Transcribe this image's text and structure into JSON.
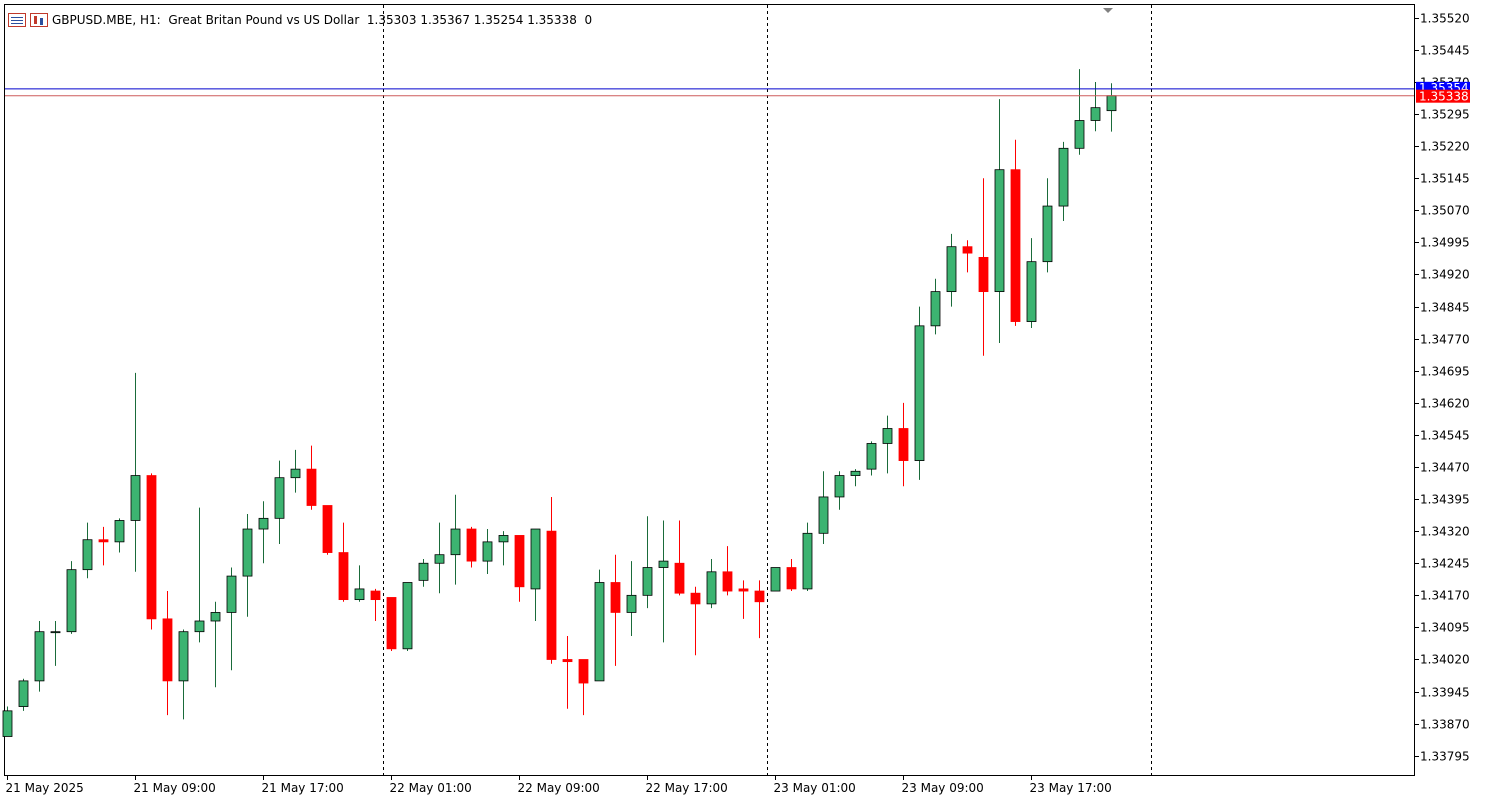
{
  "header": {
    "symbol_text": "GBPUSD.MBE, H1:  Great Britan Pound vs US Dollar  1.35303 1.35367 1.35254 1.35338  0",
    "icons": [
      "list-icon",
      "bar-chart-icon"
    ]
  },
  "colors": {
    "bull": "#3cb371",
    "bear": "#ff0000",
    "bid_line": "#0000cd",
    "ask_line": "#cd5c5c",
    "bid_label_bg": "#0000ff",
    "ask_label_bg": "#ff0000"
  },
  "chart_data": {
    "type": "candlestick",
    "ylim": [
      1.3375,
      1.3555
    ],
    "y_ticks": [
      "1.35520",
      "1.35445",
      "1.35370",
      "1.35295",
      "1.35220",
      "1.35145",
      "1.35070",
      "1.34995",
      "1.34920",
      "1.34845",
      "1.34770",
      "1.34695",
      "1.34620",
      "1.34545",
      "1.34470",
      "1.34395",
      "1.34320",
      "1.34245",
      "1.34170",
      "1.34095",
      "1.34020",
      "1.33945",
      "1.33870",
      "1.33795"
    ],
    "x_labels": [
      {
        "index": 0,
        "text": "21 May 2025"
      },
      {
        "index": 8,
        "text": "21 May 09:00"
      },
      {
        "index": 16,
        "text": "21 May 17:00"
      },
      {
        "index": 24,
        "text": "22 May 01:00"
      },
      {
        "index": 32,
        "text": "22 May 09:00"
      },
      {
        "index": 40,
        "text": "22 May 17:00"
      },
      {
        "index": 48,
        "text": "23 May 01:00"
      },
      {
        "index": 56,
        "text": "23 May 09:00"
      },
      {
        "index": 64,
        "text": "23 May 17:00"
      }
    ],
    "day_separators": [
      23,
      47,
      71
    ],
    "current_price": {
      "bid": "1.35338",
      "ask": "1.35354"
    },
    "candles": [
      {
        "o": 1.3384,
        "h": 1.3391,
        "l": 1.3384,
        "c": 1.339
      },
      {
        "o": 1.3391,
        "h": 1.33975,
        "l": 1.339,
        "c": 1.3397
      },
      {
        "o": 1.3397,
        "h": 1.3411,
        "l": 1.33945,
        "c": 1.34085
      },
      {
        "o": 1.34085,
        "h": 1.3411,
        "l": 1.34005,
        "c": 1.34085
      },
      {
        "o": 1.34085,
        "h": 1.3425,
        "l": 1.3408,
        "c": 1.3423
      },
      {
        "o": 1.3423,
        "h": 1.3434,
        "l": 1.3421,
        "c": 1.343
      },
      {
        "o": 1.343,
        "h": 1.3433,
        "l": 1.3424,
        "c": 1.34295
      },
      {
        "o": 1.34295,
        "h": 1.3435,
        "l": 1.3427,
        "c": 1.34345
      },
      {
        "o": 1.34345,
        "h": 1.3469,
        "l": 1.34225,
        "c": 1.3445
      },
      {
        "o": 1.3445,
        "h": 1.34455,
        "l": 1.3409,
        "c": 1.34115
      },
      {
        "o": 1.34115,
        "h": 1.3418,
        "l": 1.3389,
        "c": 1.3397
      },
      {
        "o": 1.3397,
        "h": 1.3409,
        "l": 1.3388,
        "c": 1.34085
      },
      {
        "o": 1.34085,
        "h": 1.34375,
        "l": 1.3406,
        "c": 1.3411
      },
      {
        "o": 1.3411,
        "h": 1.34155,
        "l": 1.33955,
        "c": 1.3413
      },
      {
        "o": 1.3413,
        "h": 1.34235,
        "l": 1.33995,
        "c": 1.34215
      },
      {
        "o": 1.34215,
        "h": 1.3436,
        "l": 1.3412,
        "c": 1.34325
      },
      {
        "o": 1.34325,
        "h": 1.3439,
        "l": 1.34245,
        "c": 1.3435
      },
      {
        "o": 1.3435,
        "h": 1.34485,
        "l": 1.3429,
        "c": 1.34445
      },
      {
        "o": 1.34445,
        "h": 1.3451,
        "l": 1.3441,
        "c": 1.34465
      },
      {
        "o": 1.34465,
        "h": 1.3452,
        "l": 1.3437,
        "c": 1.3438
      },
      {
        "o": 1.3438,
        "h": 1.3438,
        "l": 1.34265,
        "c": 1.3427
      },
      {
        "o": 1.3427,
        "h": 1.3434,
        "l": 1.34155,
        "c": 1.3416
      },
      {
        "o": 1.3416,
        "h": 1.3424,
        "l": 1.34155,
        "c": 1.34185
      },
      {
        "o": 1.3418,
        "h": 1.34185,
        "l": 1.3411,
        "c": 1.3416
      },
      {
        "o": 1.34165,
        "h": 1.34165,
        "l": 1.3404,
        "c": 1.34045
      },
      {
        "o": 1.34045,
        "h": 1.342,
        "l": 1.3404,
        "c": 1.342
      },
      {
        "o": 1.34205,
        "h": 1.34255,
        "l": 1.3419,
        "c": 1.34245
      },
      {
        "o": 1.34245,
        "h": 1.3434,
        "l": 1.34175,
        "c": 1.34265
      },
      {
        "o": 1.34265,
        "h": 1.34405,
        "l": 1.34195,
        "c": 1.34325
      },
      {
        "o": 1.34325,
        "h": 1.3433,
        "l": 1.34235,
        "c": 1.3425
      },
      {
        "o": 1.3425,
        "h": 1.34325,
        "l": 1.3422,
        "c": 1.34295
      },
      {
        "o": 1.34295,
        "h": 1.3432,
        "l": 1.3424,
        "c": 1.3431
      },
      {
        "o": 1.3431,
        "h": 1.3431,
        "l": 1.34155,
        "c": 1.3419
      },
      {
        "o": 1.34185,
        "h": 1.34325,
        "l": 1.3411,
        "c": 1.34325
      },
      {
        "o": 1.3432,
        "h": 1.344,
        "l": 1.3401,
        "c": 1.3402
      },
      {
        "o": 1.3402,
        "h": 1.34075,
        "l": 1.33905,
        "c": 1.34015
      },
      {
        "o": 1.3402,
        "h": 1.3402,
        "l": 1.3389,
        "c": 1.33965
      },
      {
        "o": 1.3397,
        "h": 1.3423,
        "l": 1.3397,
        "c": 1.342
      },
      {
        "o": 1.342,
        "h": 1.34265,
        "l": 1.34005,
        "c": 1.3413
      },
      {
        "o": 1.3413,
        "h": 1.3425,
        "l": 1.34075,
        "c": 1.3417
      },
      {
        "o": 1.3417,
        "h": 1.34355,
        "l": 1.3414,
        "c": 1.34235
      },
      {
        "o": 1.34235,
        "h": 1.34345,
        "l": 1.3406,
        "c": 1.3425
      },
      {
        "o": 1.34245,
        "h": 1.34345,
        "l": 1.3417,
        "c": 1.34175
      },
      {
        "o": 1.34175,
        "h": 1.3419,
        "l": 1.3403,
        "c": 1.3415
      },
      {
        "o": 1.3415,
        "h": 1.34255,
        "l": 1.3414,
        "c": 1.34225
      },
      {
        "o": 1.34225,
        "h": 1.34285,
        "l": 1.3417,
        "c": 1.3418
      },
      {
        "o": 1.34185,
        "h": 1.34205,
        "l": 1.34115,
        "c": 1.3418
      },
      {
        "o": 1.3418,
        "h": 1.34205,
        "l": 1.3407,
        "c": 1.34155
      },
      {
        "o": 1.3418,
        "h": 1.34235,
        "l": 1.3418,
        "c": 1.34235
      },
      {
        "o": 1.34235,
        "h": 1.34255,
        "l": 1.3418,
        "c": 1.34185
      },
      {
        "o": 1.34185,
        "h": 1.3434,
        "l": 1.3418,
        "c": 1.34315
      },
      {
        "o": 1.34315,
        "h": 1.3446,
        "l": 1.3429,
        "c": 1.344
      },
      {
        "o": 1.344,
        "h": 1.3446,
        "l": 1.3437,
        "c": 1.3445
      },
      {
        "o": 1.3445,
        "h": 1.34465,
        "l": 1.34425,
        "c": 1.3446
      },
      {
        "o": 1.34465,
        "h": 1.3453,
        "l": 1.3445,
        "c": 1.34525
      },
      {
        "o": 1.34525,
        "h": 1.3459,
        "l": 1.34455,
        "c": 1.3456
      },
      {
        "o": 1.3456,
        "h": 1.3462,
        "l": 1.34425,
        "c": 1.34485
      },
      {
        "o": 1.34485,
        "h": 1.34845,
        "l": 1.3444,
        "c": 1.348
      },
      {
        "o": 1.348,
        "h": 1.3491,
        "l": 1.3478,
        "c": 1.3488
      },
      {
        "o": 1.3488,
        "h": 1.35015,
        "l": 1.34845,
        "c": 1.34985
      },
      {
        "o": 1.34985,
        "h": 1.35,
        "l": 1.34925,
        "c": 1.3497
      },
      {
        "o": 1.3496,
        "h": 1.35145,
        "l": 1.3473,
        "c": 1.3488
      },
      {
        "o": 1.3488,
        "h": 1.3533,
        "l": 1.3476,
        "c": 1.35165
      },
      {
        "o": 1.35165,
        "h": 1.35235,
        "l": 1.348,
        "c": 1.3481
      },
      {
        "o": 1.3481,
        "h": 1.35005,
        "l": 1.34795,
        "c": 1.3495
      },
      {
        "o": 1.3495,
        "h": 1.35145,
        "l": 1.34925,
        "c": 1.3508
      },
      {
        "o": 1.3508,
        "h": 1.3523,
        "l": 1.35045,
        "c": 1.35215
      },
      {
        "o": 1.35215,
        "h": 1.354,
        "l": 1.352,
        "c": 1.3528
      },
      {
        "o": 1.3528,
        "h": 1.3537,
        "l": 1.35255,
        "c": 1.3531
      },
      {
        "o": 1.35303,
        "h": 1.35367,
        "l": 1.35254,
        "c": 1.35338
      }
    ]
  }
}
